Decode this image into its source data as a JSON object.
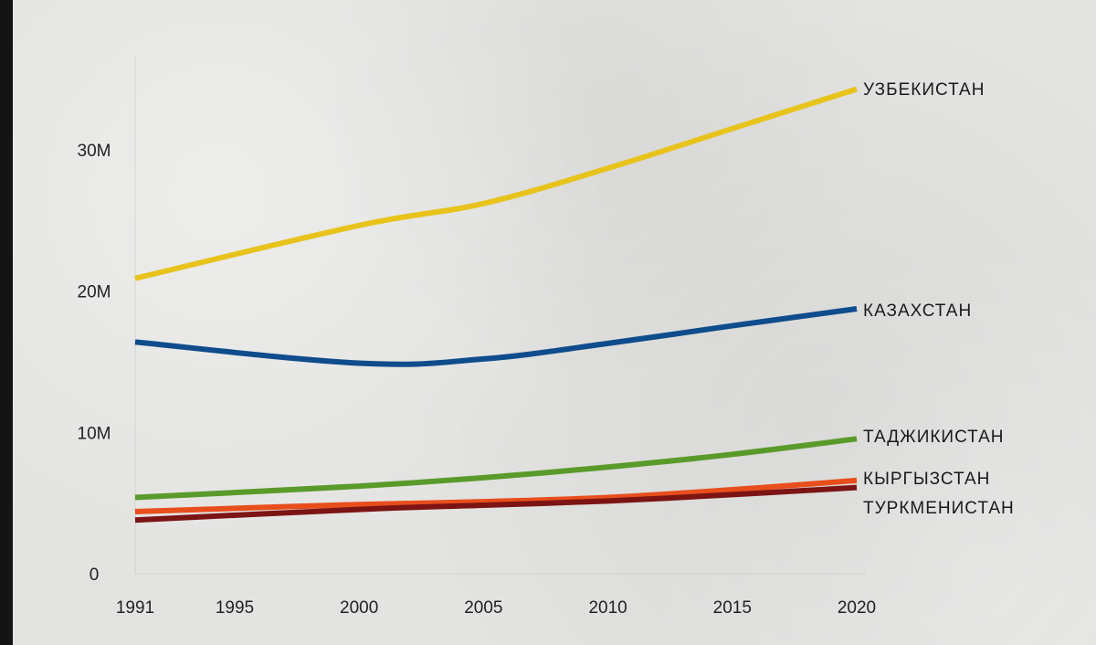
{
  "chart_data": {
    "type": "line",
    "title": "",
    "xlabel": "",
    "ylabel": "",
    "x": [
      1991,
      2000,
      2005,
      2010,
      2015,
      2020
    ],
    "xticks": [
      {
        "value": 1991,
        "label": "1991"
      },
      {
        "value": 1995,
        "label": "1995"
      },
      {
        "value": 2000,
        "label": "2000"
      },
      {
        "value": 2005,
        "label": "2005"
      },
      {
        "value": 2010,
        "label": "2010"
      },
      {
        "value": 2015,
        "label": "2015"
      },
      {
        "value": 2020,
        "label": "2020"
      }
    ],
    "yticks": [
      {
        "value": 0,
        "label": "0"
      },
      {
        "value": 10000000,
        "label": "10M"
      },
      {
        "value": 20000000,
        "label": "20M"
      },
      {
        "value": 30000000,
        "label": "30M"
      }
    ],
    "xlim": [
      1991,
      2020
    ],
    "ylim": [
      0,
      36000000
    ],
    "grid": false,
    "legend": "end-of-line labels",
    "series": [
      {
        "name": "УЗБЕКИСТАН",
        "color": "#e8c31c",
        "values": [
          20900000,
          24650000,
          26200000,
          28700000,
          31500000,
          34300000
        ]
      },
      {
        "name": "КАЗАХСТАН",
        "color": "#0e4c8c",
        "values": [
          16400000,
          14900000,
          15200000,
          16300000,
          17550000,
          18750000
        ]
      },
      {
        "name": "ТАДЖИКИСТАН",
        "color": "#5a9a2a",
        "values": [
          5400000,
          6200000,
          6800000,
          7550000,
          8450000,
          9550000
        ]
      },
      {
        "name": "КЫРГЫЗСТАН",
        "color": "#e84e1c",
        "values": [
          4400000,
          4900000,
          5100000,
          5400000,
          5950000,
          6600000
        ]
      },
      {
        "name": "ТУРКМЕНИСТАН",
        "color": "#7c1414",
        "values": [
          3800000,
          4550000,
          4850000,
          5150000,
          5600000,
          6100000
        ]
      }
    ]
  }
}
